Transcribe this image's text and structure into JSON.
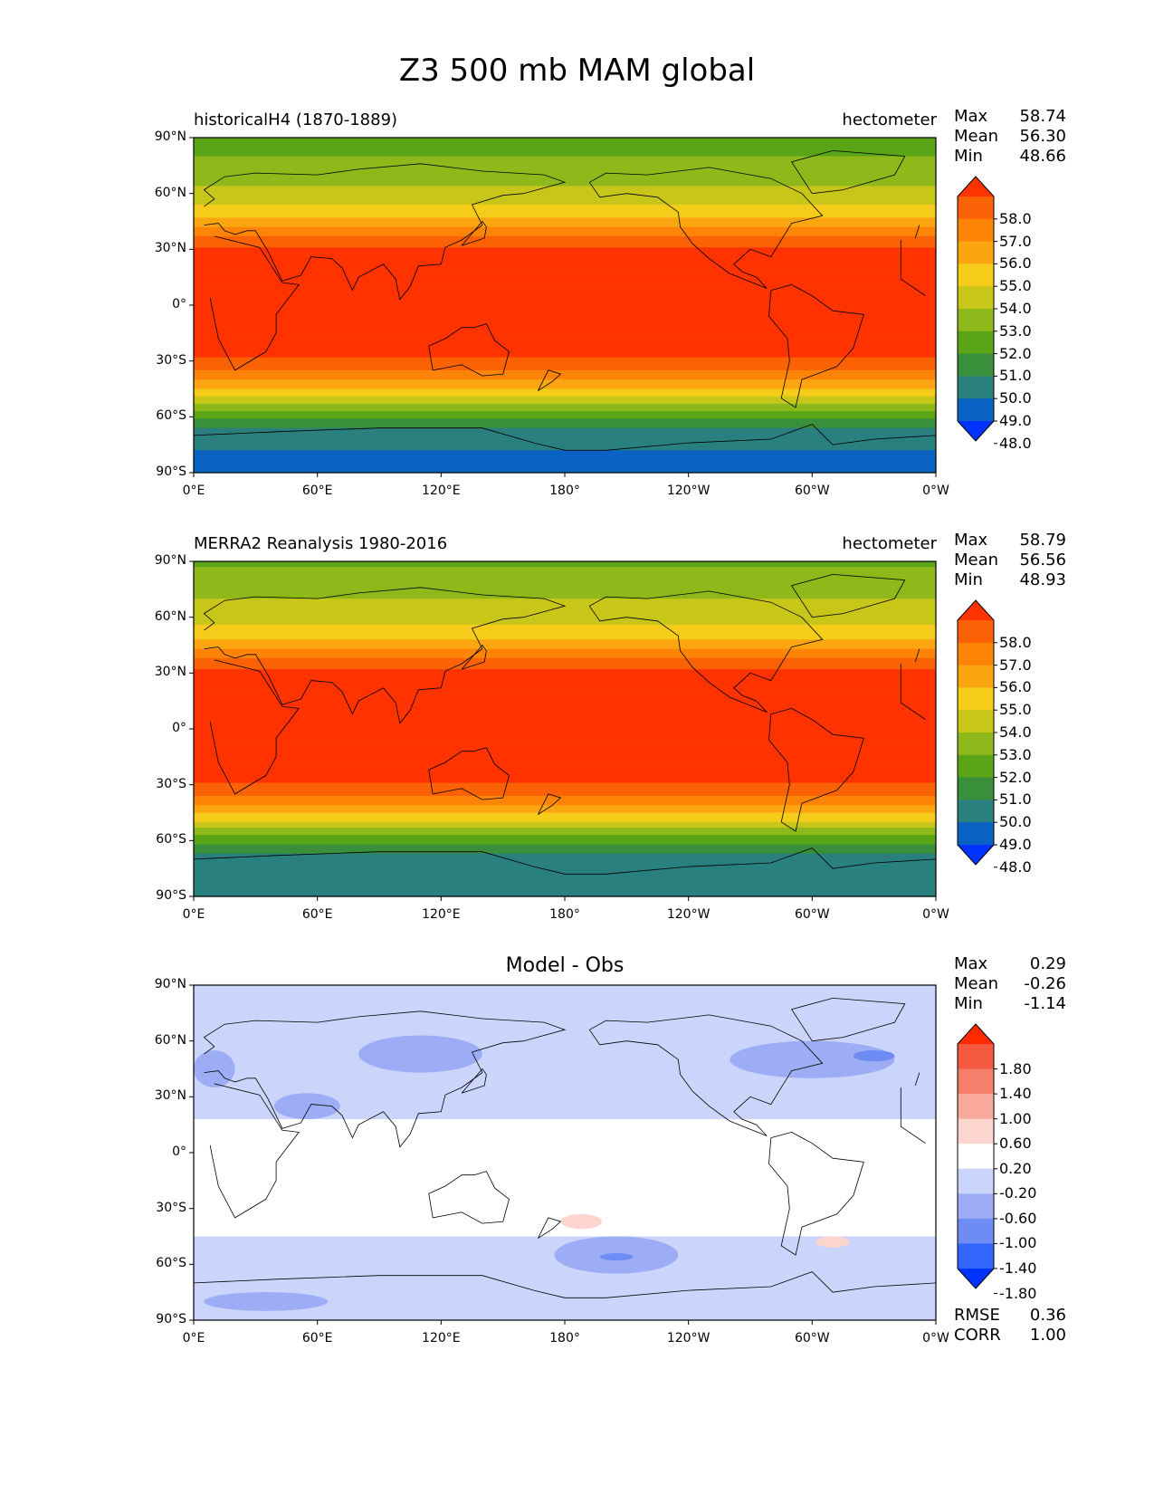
{
  "figure_title": "Z3 500 mb MAM global",
  "colors": {
    "abs_levels": [
      "#0033ff",
      "#0a63c4",
      "#2a7f7f",
      "#3a8f3a",
      "#5aa517",
      "#8fb81a",
      "#c9c61a",
      "#f5cc1a",
      "#fba611",
      "#fd8407",
      "#fb6205",
      "#ff3300"
    ],
    "diff_levels": [
      "#0033ff",
      "#3366ff",
      "#6f8cf5",
      "#9cacf5",
      "#cbd5fb",
      "#ffffff",
      "#fcd5cf",
      "#f9a99b",
      "#f57f6a",
      "#f55a40",
      "#ff2a00"
    ]
  },
  "chart_data": [
    {
      "type": "heatmap",
      "id": "test",
      "title_left": "historicalH4 (1870-1889)",
      "title_right": "hectometer",
      "stats": {
        "max_label": "Max",
        "max": "58.74",
        "mean_label": "Mean",
        "mean": "56.30",
        "min_label": "Min",
        "min": "48.66"
      },
      "x_ticks": [
        "0°E",
        "60°E",
        "120°E",
        "180°",
        "120°W",
        "60°W",
        "0°W"
      ],
      "y_ticks": [
        "90°N",
        "60°N",
        "30°N",
        "0°",
        "30°S",
        "60°S",
        "90°S"
      ],
      "xlim": [
        0,
        360
      ],
      "ylim": [
        -90,
        90
      ],
      "colorbar_ticks": [
        "58.0",
        "57.0",
        "56.0",
        "55.0",
        "54.0",
        "53.0",
        "52.0",
        "51.0",
        "50.0",
        "49.0",
        "48.0"
      ],
      "zonal_profile": {
        "lat": [
          90,
          80,
          70,
          60,
          50,
          45,
          40,
          35,
          30,
          25,
          20,
          0,
          -20,
          -25,
          -30,
          -35,
          -40,
          -45,
          -50,
          -55,
          -60,
          -65,
          -70,
          -80,
          -90
        ],
        "z": [
          51.6,
          52.0,
          52.6,
          53.3,
          54.5,
          55.3,
          56.3,
          57.3,
          58.2,
          58.6,
          58.7,
          58.7,
          58.6,
          58.3,
          57.8,
          57.0,
          56.1,
          55.0,
          53.8,
          52.5,
          51.2,
          50.2,
          49.4,
          48.9,
          48.7
        ]
      }
    },
    {
      "type": "heatmap",
      "id": "ref",
      "title_left": "MERRA2 Reanalysis 1980-2016",
      "title_right": "hectometer",
      "stats": {
        "max_label": "Max",
        "max": "58.79",
        "mean_label": "Mean",
        "mean": "56.56",
        "min_label": "Min",
        "min": "48.93"
      },
      "x_ticks": [
        "0°E",
        "60°E",
        "120°E",
        "180°",
        "120°W",
        "60°W",
        "0°W"
      ],
      "y_ticks": [
        "90°N",
        "60°N",
        "30°N",
        "0°",
        "30°S",
        "60°S",
        "90°S"
      ],
      "xlim": [
        0,
        360
      ],
      "ylim": [
        -90,
        90
      ],
      "colorbar_ticks": [
        "58.0",
        "57.0",
        "56.0",
        "55.0",
        "54.0",
        "53.0",
        "52.0",
        "51.0",
        "50.0",
        "49.0",
        "48.0"
      ],
      "zonal_profile": {
        "lat": [
          90,
          80,
          70,
          60,
          50,
          45,
          40,
          35,
          30,
          25,
          20,
          0,
          -20,
          -25,
          -30,
          -35,
          -40,
          -45,
          -50,
          -55,
          -60,
          -65,
          -70,
          -80,
          -90
        ],
        "z": [
          51.8,
          52.4,
          53.0,
          53.6,
          54.6,
          55.5,
          56.6,
          57.6,
          58.3,
          58.7,
          58.8,
          58.8,
          58.7,
          58.4,
          57.9,
          57.1,
          56.2,
          55.1,
          53.9,
          52.6,
          51.3,
          50.3,
          49.6,
          49.2,
          49.0
        ]
      }
    },
    {
      "type": "heatmap",
      "id": "diff",
      "title_center": "Model - Obs",
      "stats": {
        "max_label": "Max",
        "max": "0.29",
        "mean_label": "Mean",
        "mean": "-0.26",
        "min_label": "Min",
        "min": "-1.14"
      },
      "x_ticks": [
        "0°E",
        "60°E",
        "120°E",
        "180°",
        "120°W",
        "60°W",
        "0°W"
      ],
      "y_ticks": [
        "90°N",
        "60°N",
        "30°N",
        "0°",
        "30°S",
        "60°S",
        "90°S"
      ],
      "xlim": [
        0,
        360
      ],
      "ylim": [
        -90,
        90
      ],
      "colorbar_ticks": [
        "1.80",
        "1.40",
        "1.00",
        "0.60",
        "0.20",
        "-0.20",
        "-0.60",
        "-1.00",
        "-1.40",
        "-1.80"
      ],
      "regions": [
        {
          "lon_range": [
            0,
            360
          ],
          "lat_range": [
            18,
            90
          ],
          "value": -0.4
        },
        {
          "lon_range": [
            0,
            360
          ],
          "lat_range": [
            -90,
            -45
          ],
          "value": -0.4
        },
        {
          "lon_center": 110,
          "lat_center": 53,
          "lon_halfwidth": 30,
          "lat_halfwidth": 10,
          "value": -0.8
        },
        {
          "lon_center": 55,
          "lat_center": 25,
          "lon_halfwidth": 16,
          "lat_halfwidth": 7,
          "value": -0.8
        },
        {
          "lon_center": 10,
          "lat_center": 45,
          "lon_halfwidth": 10,
          "lat_halfwidth": 10,
          "value": -0.8
        },
        {
          "lon_center": 300,
          "lat_center": 50,
          "lon_halfwidth": 40,
          "lat_halfwidth": 10,
          "value": -0.8
        },
        {
          "lon_center": 330,
          "lat_center": 52,
          "lon_halfwidth": 10,
          "lat_halfwidth": 3,
          "value": -1.2
        },
        {
          "lon_center": 180,
          "lat_center": -20,
          "lon_halfwidth": 360,
          "lat_halfwidth": 0,
          "value": 0.0
        },
        {
          "lon_center": 205,
          "lat_center": -55,
          "lon_halfwidth": 30,
          "lat_halfwidth": 10,
          "value": -0.8
        },
        {
          "lon_center": 205,
          "lat_center": -56,
          "lon_halfwidth": 8,
          "lat_halfwidth": 2,
          "value": -1.2
        },
        {
          "lon_center": 35,
          "lat_center": -80,
          "lon_halfwidth": 30,
          "lat_halfwidth": 5,
          "value": -0.8
        },
        {
          "lon_center": 188,
          "lat_center": -37,
          "lon_halfwidth": 10,
          "lat_halfwidth": 4,
          "value": 0.3
        },
        {
          "lon_center": 310,
          "lat_center": -48,
          "lon_halfwidth": 8,
          "lat_halfwidth": 3,
          "value": 0.3
        }
      ],
      "metrics": {
        "rmse_label": "RMSE",
        "rmse": "0.36",
        "corr_label": "CORR",
        "corr": "1.00"
      }
    }
  ]
}
